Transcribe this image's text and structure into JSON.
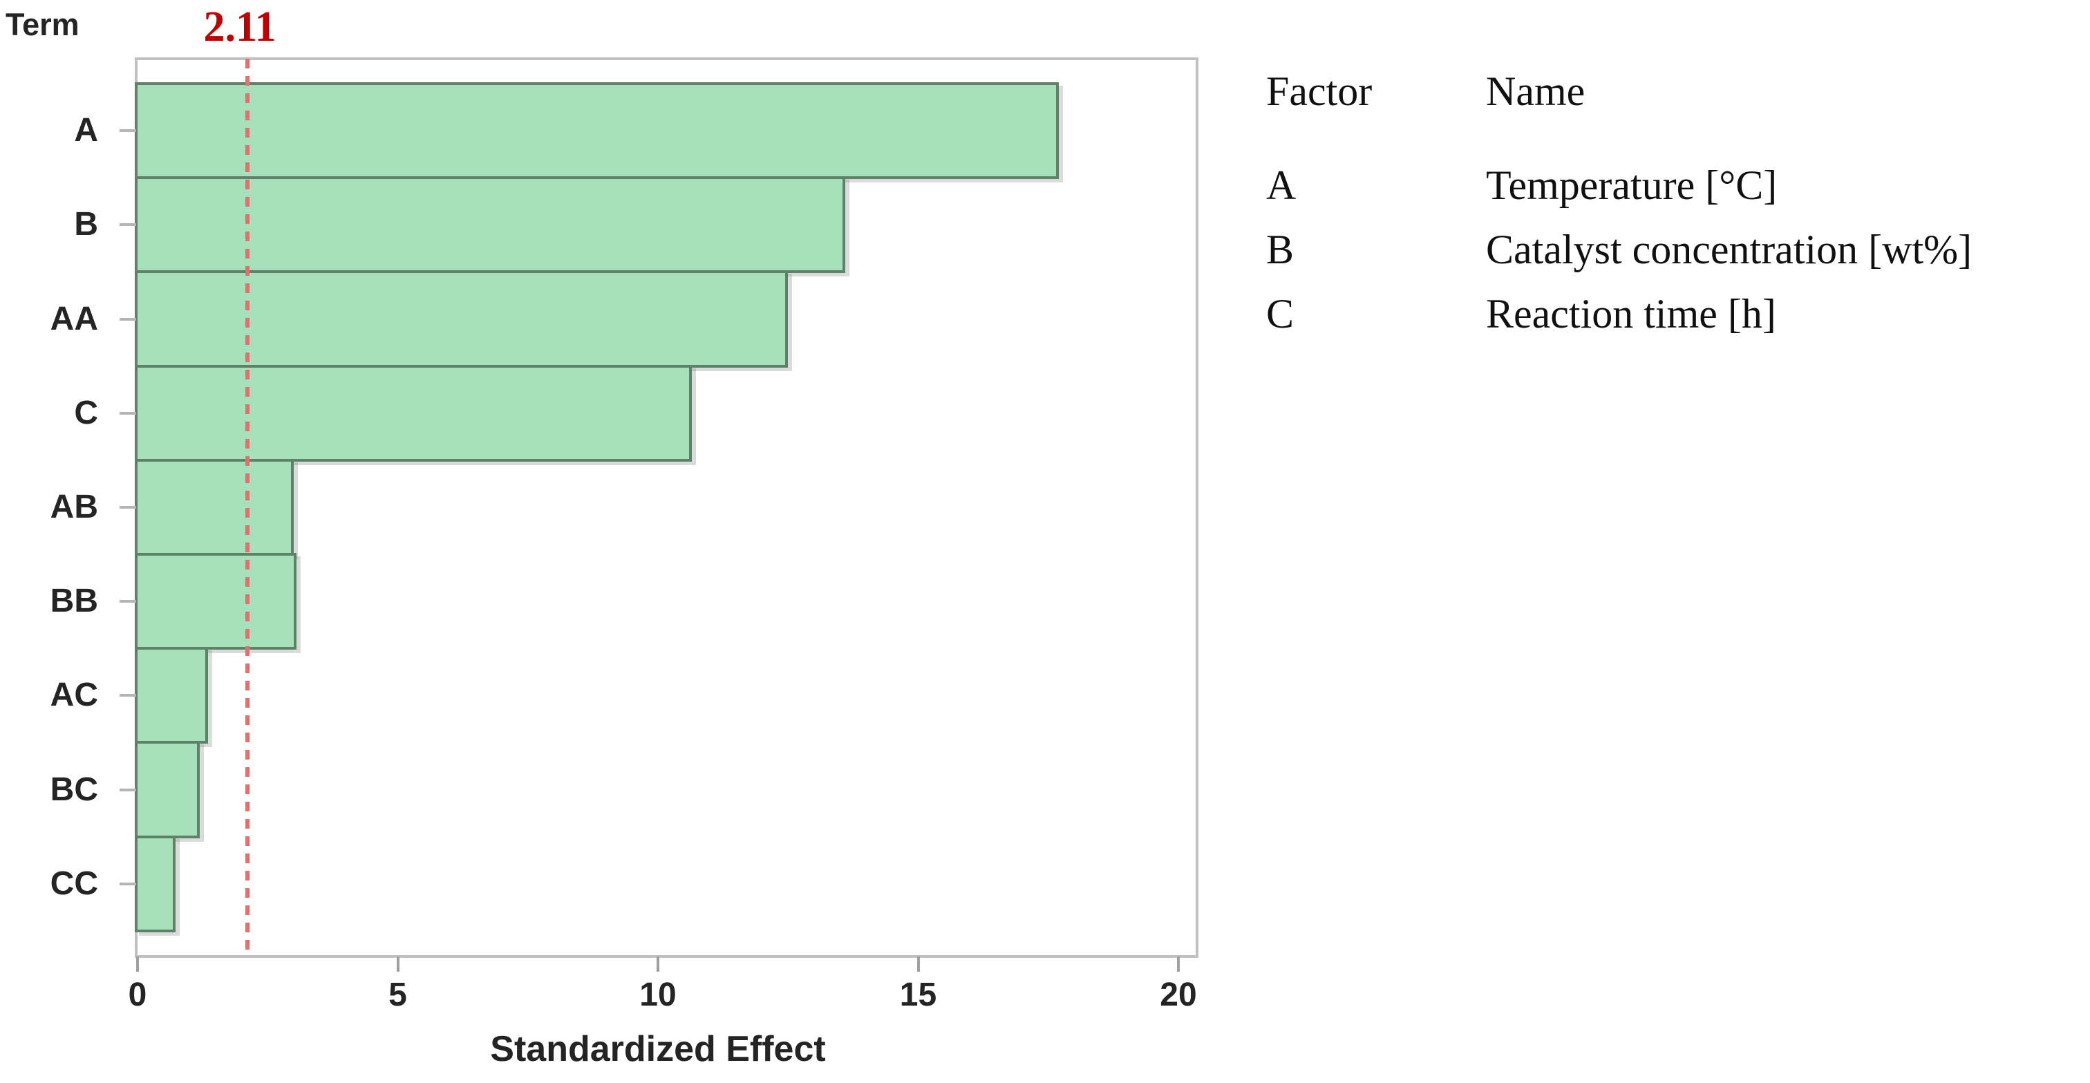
{
  "chart_data": {
    "type": "bar",
    "orientation": "horizontal",
    "ylabel": "Term",
    "xlabel": "Standardized Effect",
    "categories": [
      "A",
      "B",
      "AA",
      "C",
      "AB",
      "BB",
      "AC",
      "BC",
      "CC"
    ],
    "values": [
      17.7,
      13.6,
      12.5,
      10.65,
      3.0,
      3.05,
      1.35,
      1.2,
      0.73
    ],
    "xlim": [
      0,
      20
    ],
    "xticks": [
      0,
      5,
      10,
      15,
      20
    ],
    "grid": "off",
    "reference_line": {
      "value": 2.11,
      "label": "2.11",
      "style": "dashed"
    },
    "colors": {
      "bar_fill": "#a6e1bb",
      "bar_border": "#5e8168",
      "reference_line": "#e66e6e",
      "reference_label": "#c00000",
      "axis": "#c1c1c1",
      "text": "#242424"
    },
    "legend": {
      "position": "right",
      "headers": [
        "Factor",
        "Name"
      ],
      "rows": [
        {
          "factor": "A",
          "name": "Temperature [°C]"
        },
        {
          "factor": "B",
          "name": "Catalyst concentration [wt%]"
        },
        {
          "factor": "C",
          "name": "Reaction time [h]"
        }
      ]
    }
  }
}
